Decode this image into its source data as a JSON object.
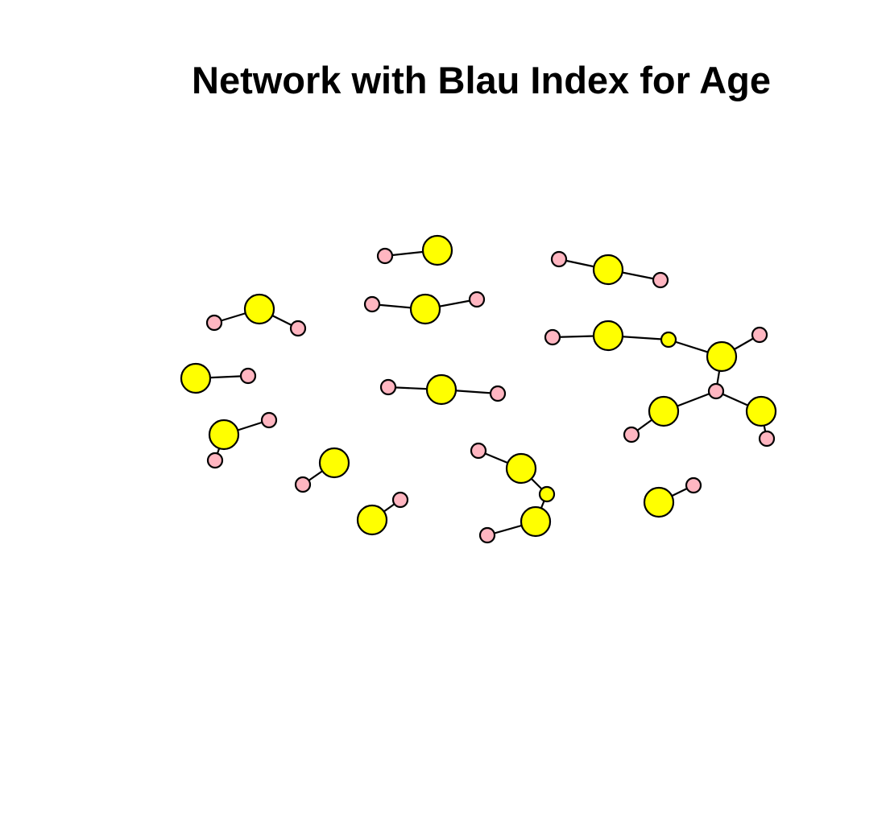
{
  "title": "Network with Blau Index for Age",
  "colors": {
    "high_blau": "#ffff00",
    "low_blau": "#ffb6c1",
    "edge": "#000000",
    "outline": "#000000"
  }
}
